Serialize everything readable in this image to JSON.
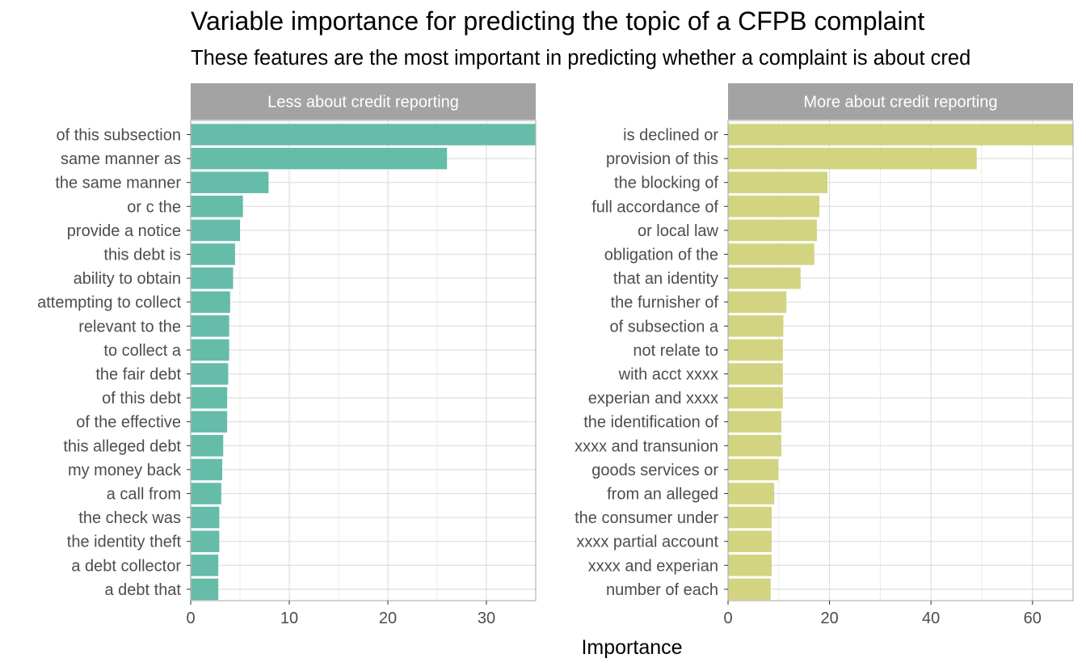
{
  "chart_data": {
    "type": "bar",
    "orientation": "horizontal",
    "title": "Variable importance for predicting the topic of a CFPB complaint",
    "subtitle": "These features are the most important in predicting whether a complaint is about cred",
    "xlabel": "Importance",
    "ylabel": "",
    "grid": true,
    "facets": [
      {
        "strip_label": "Less about credit reporting",
        "color": "#5cb8a4",
        "xlim": [
          0,
          35
        ],
        "xticks": [
          0,
          10,
          20,
          30
        ],
        "categories": [
          "of this subsection",
          "same manner as",
          "the same manner",
          "or c the",
          "provide a notice",
          "this debt is",
          "ability to obtain",
          "attempting to collect",
          "relevant to the",
          "to collect a",
          "the fair debt",
          "of this debt",
          "of the effective",
          "this alleged debt",
          "my money back",
          "a call from",
          "the check was",
          "the identity theft",
          "a debt collector",
          "a debt that"
        ],
        "values": [
          35,
          26,
          7.9,
          5.3,
          5.0,
          4.5,
          4.3,
          4.0,
          3.9,
          3.9,
          3.8,
          3.7,
          3.7,
          3.3,
          3.2,
          3.1,
          2.9,
          2.9,
          2.8,
          2.8
        ]
      },
      {
        "strip_label": "More about credit reporting",
        "color": "#d0d27a",
        "xlim": [
          0,
          68
        ],
        "xticks": [
          0,
          20,
          40,
          60
        ],
        "categories": [
          "is declined or",
          "provision of this",
          "the blocking of",
          "full accordance of",
          "or local law",
          "obligation of the",
          "that an identity",
          "the furnisher of",
          "of subsection a",
          "not relate to",
          "with acct xxxx",
          "experian and xxxx",
          "the identification of",
          "xxxx and transunion",
          "goods services or",
          "from an alleged",
          "the consumer under",
          "xxxx partial account",
          "xxxx and experian",
          "number of each"
        ],
        "values": [
          68,
          49,
          19.6,
          18,
          17.5,
          17,
          14.3,
          11.5,
          10.9,
          10.8,
          10.8,
          10.8,
          10.5,
          10.5,
          9.9,
          9.1,
          8.6,
          8.6,
          8.6,
          8.4
        ]
      }
    ]
  }
}
